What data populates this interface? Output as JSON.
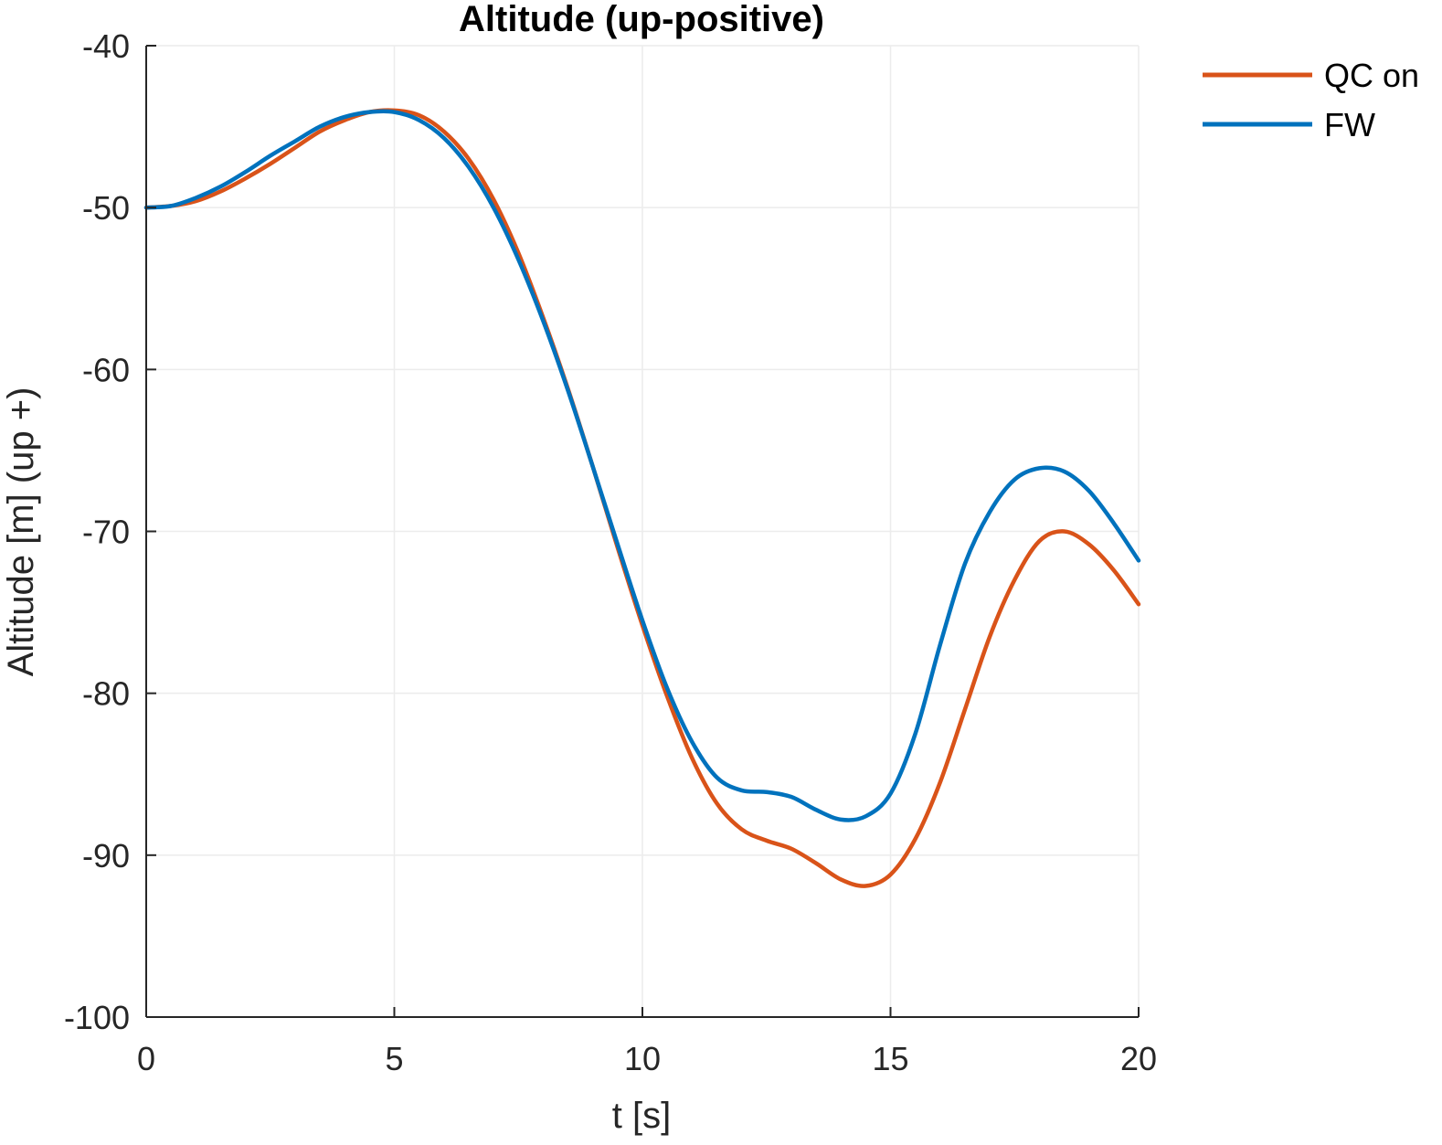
{
  "chart_data": {
    "type": "line",
    "title": "Altitude (up-positive)",
    "xlabel": "t [s]",
    "ylabel": "Altitude [m] (up +)",
    "xlim": [
      0,
      20
    ],
    "ylim": [
      -100,
      -40
    ],
    "xticks": [
      0,
      5,
      10,
      15,
      20
    ],
    "yticks": [
      -40,
      -50,
      -60,
      -70,
      -80,
      -90,
      -100
    ],
    "grid": true,
    "legend_position": "top-right, outside",
    "series": [
      {
        "name": "QC on",
        "color": "#D95319",
        "x": [
          0,
          0.5,
          1,
          1.5,
          2,
          2.5,
          3,
          3.5,
          4,
          4.5,
          5,
          5.5,
          6,
          6.5,
          7,
          7.5,
          8,
          8.5,
          9,
          9.5,
          10,
          10.5,
          11,
          11.5,
          12,
          12.5,
          13,
          13.5,
          14,
          14.5,
          15,
          15.5,
          16,
          16.5,
          17,
          17.5,
          18,
          18.5,
          19,
          19.5,
          20
        ],
        "y": [
          -50,
          -49.9,
          -49.6,
          -49.0,
          -48.2,
          -47.3,
          -46.3,
          -45.3,
          -44.6,
          -44.1,
          -44.0,
          -44.3,
          -45.3,
          -47.0,
          -49.5,
          -52.8,
          -56.8,
          -61.2,
          -66.0,
          -71.0,
          -75.8,
          -80.2,
          -84.0,
          -86.8,
          -88.4,
          -89.1,
          -89.6,
          -90.5,
          -91.5,
          -91.9,
          -91.2,
          -89.0,
          -85.5,
          -81.0,
          -76.5,
          -73.0,
          -70.6,
          -70.0,
          -70.8,
          -72.4,
          -74.5
        ]
      },
      {
        "name": "FW",
        "color": "#0072BD",
        "x": [
          0,
          0.5,
          1,
          1.5,
          2,
          2.5,
          3,
          3.5,
          4,
          4.5,
          5,
          5.5,
          6,
          6.5,
          7,
          7.5,
          8,
          8.5,
          9,
          9.5,
          10,
          10.5,
          11,
          11.5,
          12,
          12.5,
          13,
          13.5,
          14,
          14.5,
          15,
          15.5,
          16,
          16.5,
          17,
          17.5,
          18,
          18.5,
          19,
          19.5,
          20
        ],
        "y": [
          -50,
          -49.9,
          -49.4,
          -48.7,
          -47.8,
          -46.8,
          -45.9,
          -45.0,
          -44.4,
          -44.1,
          -44.1,
          -44.6,
          -45.7,
          -47.5,
          -50.0,
          -53.2,
          -57.0,
          -61.3,
          -66.0,
          -70.8,
          -75.5,
          -79.7,
          -83.0,
          -85.2,
          -86.0,
          -86.1,
          -86.4,
          -87.2,
          -87.8,
          -87.6,
          -86.2,
          -82.5,
          -77.0,
          -72.0,
          -68.8,
          -66.8,
          -66.1,
          -66.3,
          -67.5,
          -69.5,
          -71.8
        ]
      }
    ]
  }
}
